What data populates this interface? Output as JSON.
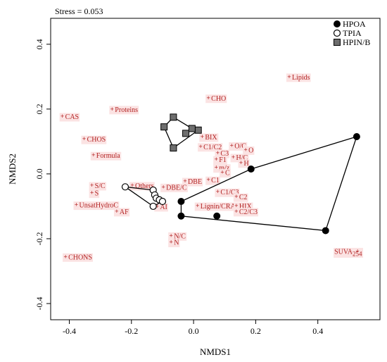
{
  "chart_data": {
    "type": "scatter",
    "annotation": "Stress = 0.053",
    "xlabel": "NMDS1",
    "ylabel": "NMDS2",
    "xlim": [
      -0.46,
      0.6
    ],
    "ylim": [
      -0.45,
      0.48
    ],
    "xticks": [
      -0.4,
      -0.2,
      0.0,
      0.2,
      0.4
    ],
    "yticks": [
      -0.4,
      -0.2,
      0.0,
      0.2,
      0.4
    ],
    "xtick_labels": [
      "-0.4",
      "-0.2",
      "0.0",
      "0.2",
      "0.4"
    ],
    "ytick_labels": [
      "-0.4",
      "-0.2",
      "0.0",
      "0.2",
      "0.4"
    ],
    "legend_position": "top-right",
    "series": [
      {
        "name": "HPOA",
        "marker": "filled-circle",
        "points": [
          [
            -0.04,
            -0.085
          ],
          [
            0.185,
            0.015
          ],
          [
            0.525,
            0.115
          ],
          [
            0.425,
            -0.175
          ],
          [
            -0.04,
            -0.13
          ],
          [
            0.075,
            -0.13
          ]
        ],
        "hull": [
          [
            -0.04,
            -0.085
          ],
          [
            0.185,
            0.015
          ],
          [
            0.525,
            0.115
          ],
          [
            0.425,
            -0.175
          ],
          [
            -0.04,
            -0.13
          ]
        ]
      },
      {
        "name": "TPIA",
        "marker": "open-circle",
        "points": [
          [
            -0.22,
            -0.04
          ],
          [
            -0.13,
            -0.05
          ],
          [
            -0.125,
            -0.065
          ],
          [
            -0.12,
            -0.075
          ],
          [
            -0.11,
            -0.08
          ],
          [
            -0.1,
            -0.085
          ],
          [
            -0.13,
            -0.1
          ]
        ],
        "hull": [
          [
            -0.22,
            -0.04
          ],
          [
            -0.13,
            -0.05
          ],
          [
            -0.12,
            -0.075
          ],
          [
            -0.1,
            -0.085
          ],
          [
            -0.13,
            -0.1
          ]
        ]
      },
      {
        "name": "HPIN/B",
        "marker": "filled-square",
        "points": [
          [
            -0.065,
            0.175
          ],
          [
            -0.095,
            0.145
          ],
          [
            -0.065,
            0.08
          ],
          [
            -0.025,
            0.125
          ],
          [
            0.015,
            0.135
          ],
          [
            -0.005,
            0.14
          ]
        ],
        "hull": [
          [
            -0.065,
            0.175
          ],
          [
            -0.005,
            0.14
          ],
          [
            0.015,
            0.135
          ],
          [
            -0.065,
            0.08
          ],
          [
            -0.095,
            0.145
          ]
        ]
      }
    ],
    "variables": [
      {
        "label": "Lipids",
        "x": 0.31,
        "y": 0.3
      },
      {
        "label": "CHO",
        "x": 0.05,
        "y": 0.235
      },
      {
        "label": "Proteins",
        "x": -0.26,
        "y": 0.2
      },
      {
        "label": "CAS",
        "x": -0.42,
        "y": 0.178
      },
      {
        "label": "CHOS",
        "x": -0.35,
        "y": 0.108
      },
      {
        "label": "BIX",
        "x": 0.03,
        "y": 0.115
      },
      {
        "label": "C1/C2",
        "x": 0.025,
        "y": 0.085
      },
      {
        "label": "O/C",
        "x": 0.125,
        "y": 0.088
      },
      {
        "label": "O",
        "x": 0.17,
        "y": 0.075
      },
      {
        "label": "C3",
        "x": 0.08,
        "y": 0.065
      },
      {
        "label": "F1",
        "x": 0.075,
        "y": 0.045
      },
      {
        "label": "H/C",
        "x": 0.13,
        "y": 0.052
      },
      {
        "label": "H",
        "x": 0.155,
        "y": 0.035
      },
      {
        "label": "Formula",
        "x": -0.32,
        "y": 0.058
      },
      {
        "label": "m/z",
        "x": 0.075,
        "y": 0.02
      },
      {
        "label": "C",
        "x": 0.095,
        "y": 0.005
      },
      {
        "label": "C1",
        "x": 0.05,
        "y": -0.018
      },
      {
        "label": "DBE",
        "x": -0.025,
        "y": -0.022
      },
      {
        "label": "DBE/C",
        "x": -0.095,
        "y": -0.04
      },
      {
        "label": "Others",
        "x": -0.195,
        "y": -0.035
      },
      {
        "label": "S/C",
        "x": -0.325,
        "y": -0.035
      },
      {
        "label": "S",
        "x": -0.325,
        "y": -0.058
      },
      {
        "label": "C1/C3",
        "x": 0.08,
        "y": -0.055
      },
      {
        "label": "C2",
        "x": 0.14,
        "y": -0.07
      },
      {
        "label": "UnsatHydroC",
        "x": -0.375,
        "y": -0.095
      },
      {
        "label": "AF",
        "x": -0.245,
        "y": -0.115
      },
      {
        "label": "AI",
        "x": -0.115,
        "y": -0.1
      },
      {
        "label": "Lignin/CRAM",
        "x": 0.015,
        "y": -0.098
      },
      {
        "label": "HIX",
        "x": 0.14,
        "y": -0.098
      },
      {
        "label": "C2/C3",
        "x": 0.14,
        "y": -0.115
      },
      {
        "label": "N/C",
        "x": -0.07,
        "y": -0.19
      },
      {
        "label": "N",
        "x": -0.07,
        "y": -0.21
      },
      {
        "label": "SUVA254",
        "x": 0.53,
        "y": -0.238
      },
      {
        "label": "CHONS",
        "x": -0.41,
        "y": -0.255
      }
    ]
  }
}
